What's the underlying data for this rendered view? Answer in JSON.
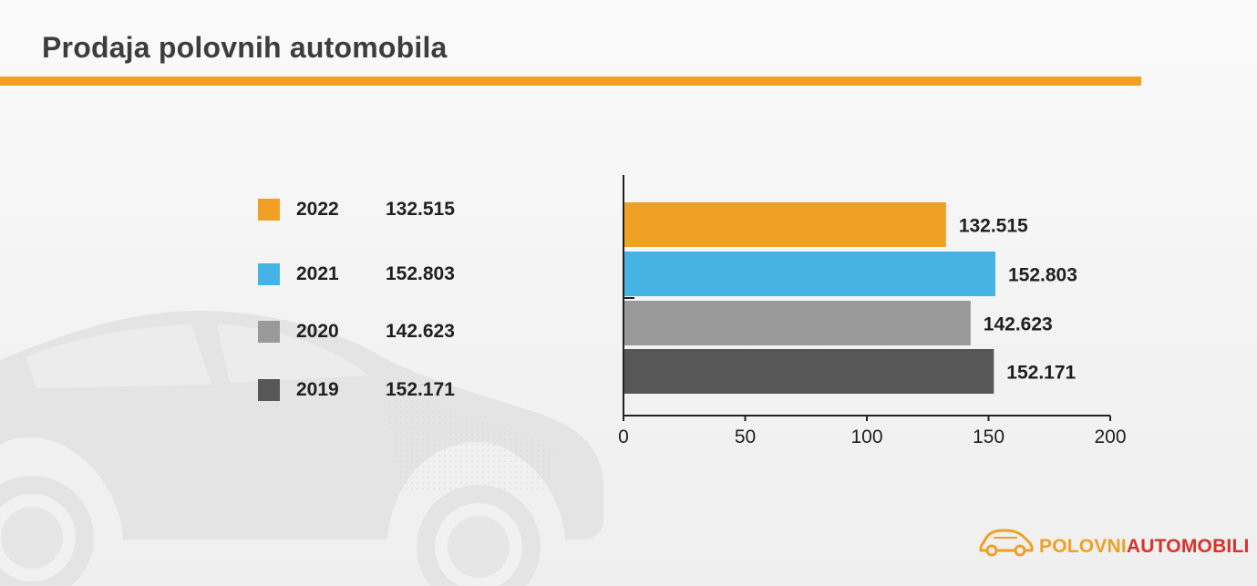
{
  "title": "Prodaja polovnih automobila",
  "colors": {
    "accent": "#f0a024",
    "series_2022": "#f0a024",
    "series_2021": "#45b4e4",
    "series_2020": "#999999",
    "series_2019": "#575757",
    "logo_red": "#d9322a"
  },
  "legend": [
    {
      "year": "2022",
      "value": "132.515",
      "color": "#f0a024"
    },
    {
      "year": "2021",
      "value": "152.803",
      "color": "#45b4e4"
    },
    {
      "year": "2020",
      "value": "142.623",
      "color": "#999999"
    },
    {
      "year": "2019",
      "value": "152.171",
      "color": "#575757"
    }
  ],
  "chart_data": {
    "type": "bar",
    "orientation": "horizontal",
    "categories": [
      "2022",
      "2021",
      "2020",
      "2019"
    ],
    "values": [
      132.515,
      152.803,
      142.623,
      152.171
    ],
    "data_labels": [
      "132.515",
      "152.803",
      "142.623",
      "152.171"
    ],
    "colors": [
      "#f0a024",
      "#45b4e4",
      "#999999",
      "#575757"
    ],
    "xlim": [
      0,
      200
    ],
    "xticks": [
      0,
      50,
      100,
      150,
      200
    ],
    "grid": false,
    "title": "",
    "xlabel": "",
    "ylabel": ""
  },
  "logo": {
    "icon": "car-logo-icon",
    "part1": "POLOVNI",
    "part2": "AUTOMOBILI"
  }
}
